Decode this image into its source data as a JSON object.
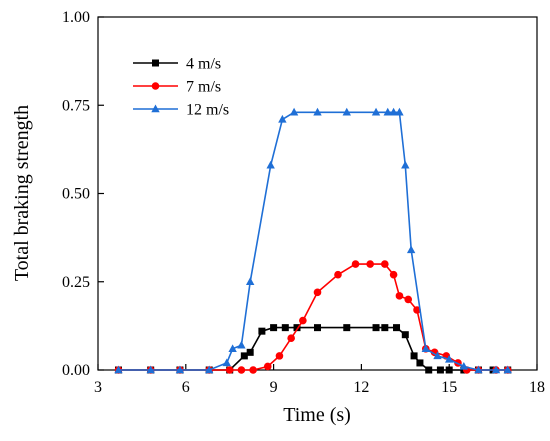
{
  "chart_data": {
    "type": "line",
    "title": "",
    "xlabel": "Time (s)",
    "ylabel": "Total braking strength",
    "xlim": [
      3,
      18
    ],
    "ylim": [
      0,
      1.0
    ],
    "xticks": [
      3,
      6,
      9,
      12,
      15,
      18
    ],
    "xtick_labels": [
      "3",
      "6",
      "9",
      "12",
      "15",
      "18"
    ],
    "yticks": [
      0,
      0.25,
      0.5,
      0.75,
      1.0
    ],
    "ytick_labels": [
      "0.00",
      "0.25",
      "0.50",
      "0.75",
      "1.00"
    ],
    "grid": false,
    "legend": "top-left",
    "series": [
      {
        "name": "4 m/s",
        "color": "#000000",
        "marker": "square",
        "x": [
          3.7,
          4.8,
          5.8,
          6.8,
          7.5,
          8.0,
          8.2,
          8.6,
          9.0,
          9.4,
          9.8,
          10.5,
          11.5,
          12.5,
          12.8,
          13.2,
          13.5,
          13.8,
          14.0,
          14.3,
          14.7,
          15.0,
          15.5,
          16.0,
          16.5,
          17.0
        ],
        "y": [
          0.0,
          0.0,
          0.0,
          0.0,
          0.0,
          0.04,
          0.05,
          0.11,
          0.12,
          0.12,
          0.12,
          0.12,
          0.12,
          0.12,
          0.12,
          0.12,
          0.1,
          0.04,
          0.02,
          0.0,
          0.0,
          0.0,
          0.0,
          0.0,
          0.0,
          0.0
        ]
      },
      {
        "name": "7 m/s",
        "color": "#ff0000",
        "marker": "circle",
        "x": [
          3.7,
          4.8,
          5.8,
          6.8,
          7.5,
          7.9,
          8.3,
          8.8,
          9.2,
          9.6,
          10.0,
          10.5,
          11.2,
          11.8,
          12.3,
          12.8,
          13.1,
          13.3,
          13.6,
          13.9,
          14.2,
          14.5,
          14.9,
          15.3,
          15.6,
          16.0,
          16.6,
          17.0
        ],
        "y": [
          0.0,
          0.0,
          0.0,
          0.0,
          0.0,
          0.0,
          0.0,
          0.01,
          0.04,
          0.09,
          0.14,
          0.22,
          0.27,
          0.3,
          0.3,
          0.3,
          0.27,
          0.21,
          0.2,
          0.17,
          0.06,
          0.05,
          0.04,
          0.02,
          0.0,
          0.0,
          0.0,
          0.0
        ]
      },
      {
        "name": "12 m/s",
        "color": "#1f6fd6",
        "marker": "triangle",
        "x": [
          3.7,
          4.8,
          5.8,
          6.8,
          7.4,
          7.6,
          7.9,
          8.2,
          8.9,
          9.3,
          9.7,
          10.5,
          11.5,
          12.5,
          12.9,
          13.1,
          13.3,
          13.5,
          13.7,
          14.2,
          14.6,
          15.0,
          15.5,
          16.0,
          16.6,
          17.0
        ],
        "y": [
          0.0,
          0.0,
          0.0,
          0.0,
          0.02,
          0.06,
          0.07,
          0.25,
          0.58,
          0.71,
          0.73,
          0.73,
          0.73,
          0.73,
          0.73,
          0.73,
          0.73,
          0.58,
          0.34,
          0.06,
          0.04,
          0.03,
          0.01,
          0.0,
          0.0,
          0.0
        ]
      }
    ]
  }
}
